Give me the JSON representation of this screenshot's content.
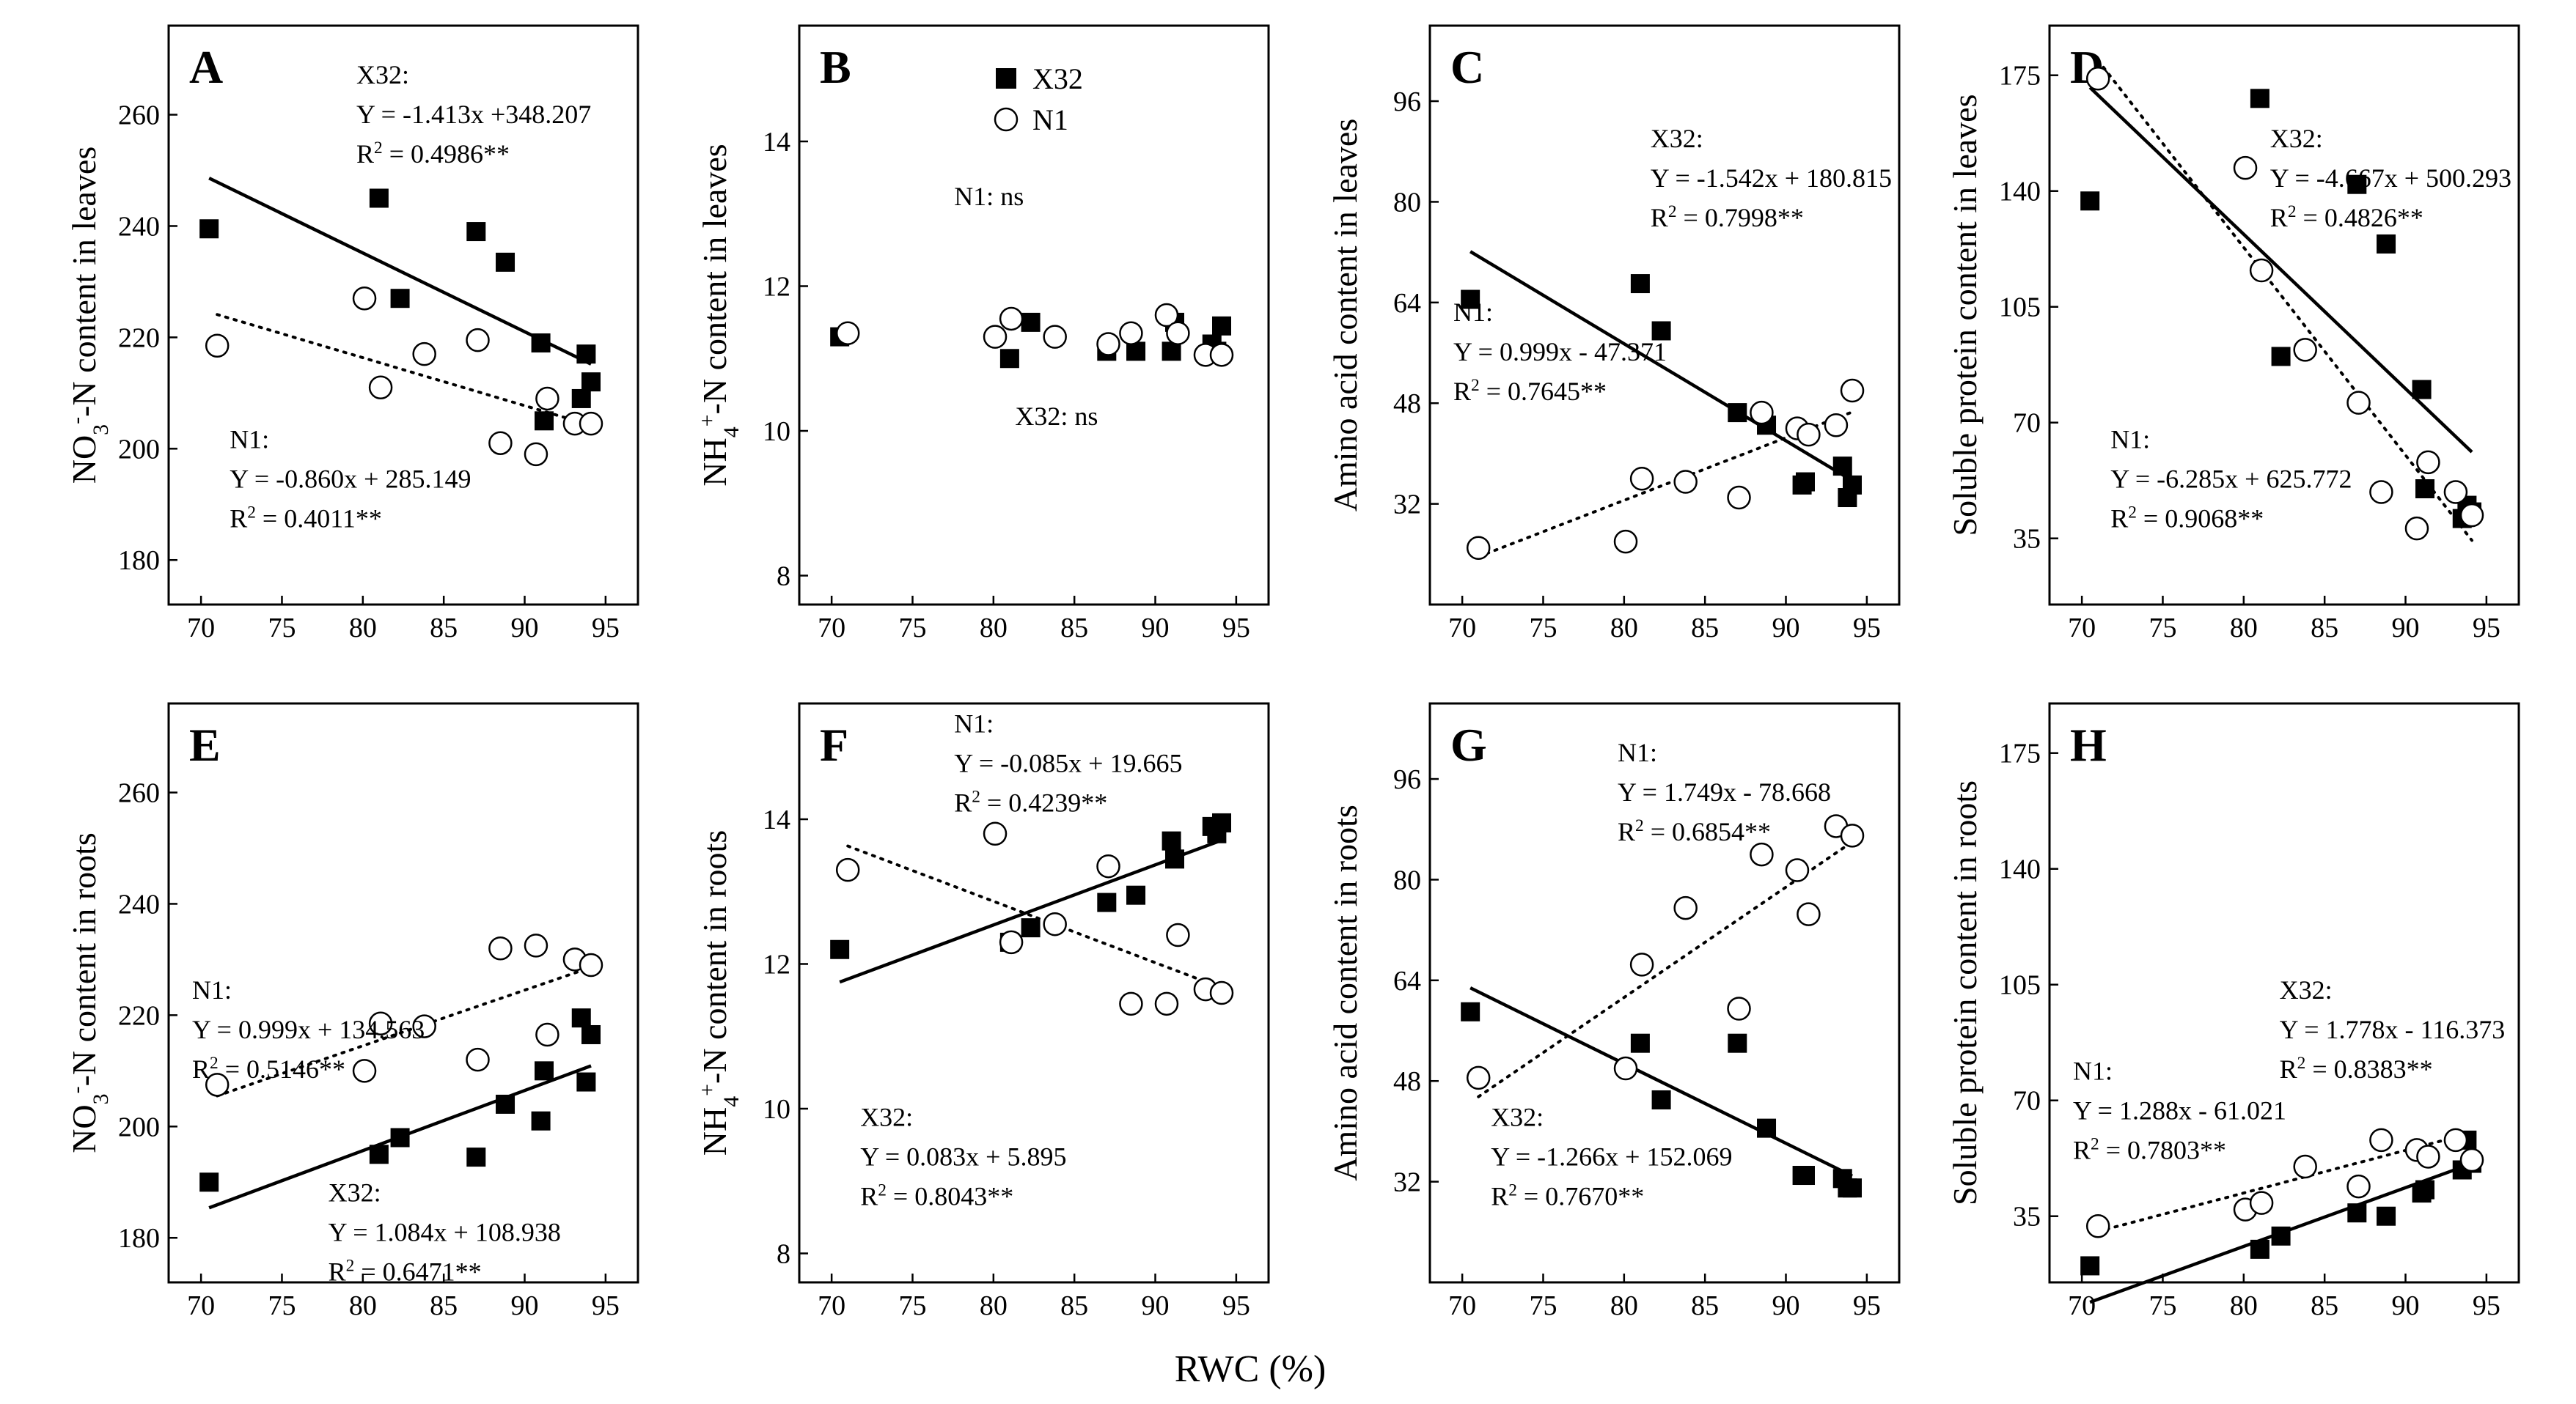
{
  "figure": {
    "xlabel": "RWC (%)"
  },
  "legend": {
    "series_x32": "X32",
    "series_n1": "N1"
  },
  "chart_data": [
    {
      "type": "scatter",
      "panel": "A",
      "ylabel": [
        "NO",
        "3",
        "-",
        "-N content in leaves"
      ],
      "xlim": [
        68,
        97
      ],
      "ylim": [
        172,
        276
      ],
      "xticks": [
        70,
        75,
        80,
        85,
        90,
        95
      ],
      "yticks": [
        180,
        200,
        220,
        240,
        260
      ],
      "series": [
        {
          "name": "X32",
          "marker": "filled-square",
          "x": [
            70.5,
            81,
            82.3,
            87,
            88.8,
            91,
            91.2,
            93.5,
            93.8,
            94.1
          ],
          "y": [
            239.5,
            245,
            227,
            239,
            233.5,
            219,
            205,
            209,
            217,
            212
          ]
        },
        {
          "name": "N1",
          "marker": "open-circle",
          "x": [
            71,
            80.1,
            81.1,
            83.8,
            87.1,
            88.5,
            90.7,
            91.4,
            93.1,
            94.1
          ],
          "y": [
            218.5,
            227,
            211,
            217,
            219.5,
            201,
            199,
            209,
            204.5,
            204.5
          ]
        }
      ],
      "fits": [
        {
          "series": "X32",
          "style": "solid",
          "x": [
            70.5,
            94.1
          ],
          "y": [
            248.6,
            215.2
          ]
        },
        {
          "series": "N1",
          "style": "dotted",
          "x": [
            71,
            94.1
          ],
          "y": [
            224.1,
            204.2
          ]
        }
      ],
      "annotations": [
        {
          "pos": "upper-middle",
          "lines": [
            [
              "X32:"
            ],
            [
              "Y = -1.413x +348.207"
            ],
            [
              "R",
              "2",
              " = 0.4986**"
            ]
          ]
        },
        {
          "pos": "lower-left",
          "lines": [
            [
              "N1:"
            ],
            [
              "Y = -0.860x + 285.149"
            ],
            [
              "R",
              "2",
              " = 0.4011**"
            ]
          ]
        }
      ]
    },
    {
      "type": "scatter",
      "panel": "B",
      "ylabel": [
        "NH",
        "4",
        "+",
        "-N content in leaves"
      ],
      "xlim": [
        68,
        97
      ],
      "ylim": [
        7.6,
        15.6
      ],
      "xticks": [
        70,
        75,
        80,
        85,
        90,
        95
      ],
      "yticks": [
        8,
        10,
        12,
        14
      ],
      "series": [
        {
          "name": "X32",
          "marker": "filled-square",
          "x": [
            70.5,
            81,
            82.3,
            87,
            88.8,
            91,
            91.2,
            93.5,
            93.8,
            94.1
          ],
          "y": [
            11.3,
            11.0,
            11.5,
            11.1,
            11.1,
            11.1,
            11.5,
            11.2,
            11.1,
            11.45
          ]
        },
        {
          "name": "N1",
          "marker": "open-circle",
          "x": [
            71,
            80.1,
            81.1,
            83.8,
            87.1,
            88.5,
            90.7,
            91.4,
            93.1,
            94.1
          ],
          "y": [
            11.35,
            11.3,
            11.55,
            11.3,
            11.2,
            11.35,
            11.6,
            11.35,
            11.05,
            11.05
          ]
        }
      ],
      "fits": [],
      "annotations": [
        {
          "pos": "mid-left-high",
          "lines": [
            [
              "N1:  ns"
            ]
          ]
        },
        {
          "pos": "mid-center-low",
          "lines": [
            [
              "X32:  ns"
            ]
          ]
        }
      ]
    },
    {
      "type": "scatter",
      "panel": "C",
      "ylabel": [
        "Amino acid content in leaves"
      ],
      "xlim": [
        68,
        97
      ],
      "ylim": [
        16,
        108
      ],
      "xticks": [
        70,
        75,
        80,
        85,
        90,
        95
      ],
      "yticks": [
        32,
        48,
        64,
        80,
        96
      ],
      "series": [
        {
          "name": "X32",
          "marker": "filled-square",
          "x": [
            70.5,
            81,
            82.3,
            87,
            88.8,
            91,
            91.2,
            93.5,
            93.8,
            94.1
          ],
          "y": [
            64.5,
            67,
            59.5,
            46.5,
            44.5,
            35,
            35.5,
            38,
            33,
            35
          ]
        },
        {
          "name": "N1",
          "marker": "open-circle",
          "x": [
            71,
            80.1,
            81.1,
            83.8,
            87.1,
            88.5,
            90.7,
            91.4,
            93.1,
            94.1
          ],
          "y": [
            25,
            26,
            36,
            35.5,
            33,
            46.5,
            44,
            43,
            44.5,
            50
          ]
        }
      ],
      "fits": [
        {
          "series": "X32",
          "style": "solid",
          "x": [
            70.5,
            94.1
          ],
          "y": [
            72.1,
            35.7
          ]
        },
        {
          "series": "N1",
          "style": "dotted",
          "x": [
            71,
            94.1
          ],
          "y": [
            23.6,
            46.6
          ]
        }
      ],
      "annotations": [
        {
          "pos": "upper-right",
          "lines": [
            [
              "X32:"
            ],
            [
              "Y = -1.542x + 180.815"
            ],
            [
              "R",
              "2",
              " = 0.7998**"
            ]
          ]
        },
        {
          "pos": "mid-left",
          "lines": [
            [
              "N1:"
            ],
            [
              "Y = 0.999x - 47.371"
            ],
            [
              "R",
              "2",
              " = 0.7645**"
            ]
          ]
        }
      ]
    },
    {
      "type": "scatter",
      "panel": "D",
      "ylabel": [
        "Soluble protein content in leaves"
      ],
      "xlim": [
        68,
        97
      ],
      "ylim": [
        15,
        190
      ],
      "xticks": [
        70,
        75,
        80,
        85,
        90,
        95
      ],
      "yticks": [
        35,
        70,
        105,
        140,
        175
      ],
      "series": [
        {
          "name": "X32",
          "marker": "filled-square",
          "x": [
            70.5,
            81,
            82.3,
            87,
            88.8,
            91,
            91.2,
            93.5,
            93.8,
            94.1
          ],
          "y": [
            137,
            168,
            90,
            142,
            124,
            80,
            50,
            41,
            45,
            43
          ]
        },
        {
          "name": "N1",
          "marker": "open-circle",
          "x": [
            71,
            80.1,
            81.1,
            83.8,
            87.1,
            88.5,
            90.7,
            91.4,
            93.1,
            94.1
          ],
          "y": [
            174,
            147,
            116,
            92,
            76,
            49,
            38,
            58,
            49,
            42
          ]
        }
      ],
      "fits": [
        {
          "series": "X32",
          "style": "solid",
          "x": [
            70.5,
            94.1
          ],
          "y": [
            171.3,
            61.1
          ]
        },
        {
          "series": "N1",
          "style": "dotted",
          "x": [
            71,
            94.1
          ],
          "y": [
            179.5,
            34.4
          ]
        }
      ],
      "annotations": [
        {
          "pos": "upper-right",
          "lines": [
            [
              "X32:"
            ],
            [
              "Y = -4.667x + 500.293"
            ],
            [
              "R",
              "2",
              " = 0.4826**"
            ]
          ]
        },
        {
          "pos": "lower-left",
          "lines": [
            [
              "N1:"
            ],
            [
              "Y = -6.285x + 625.772"
            ],
            [
              "R",
              "2",
              " = 0.9068**"
            ]
          ]
        }
      ]
    },
    {
      "type": "scatter",
      "panel": "E",
      "ylabel": [
        "NO",
        "3",
        "-",
        "-N content in roots"
      ],
      "xlim": [
        68,
        97
      ],
      "ylim": [
        172,
        276
      ],
      "xticks": [
        70,
        75,
        80,
        85,
        90,
        95
      ],
      "yticks": [
        180,
        200,
        220,
        240,
        260
      ],
      "series": [
        {
          "name": "X32",
          "marker": "filled-square",
          "x": [
            70.5,
            81,
            82.3,
            87,
            88.8,
            91,
            91.2,
            93.5,
            93.8,
            94.1
          ],
          "y": [
            190,
            195,
            198,
            194.5,
            204,
            201,
            210,
            219.5,
            208,
            216.5
          ]
        },
        {
          "name": "N1",
          "marker": "open-circle",
          "x": [
            71,
            80.1,
            81.1,
            83.8,
            87.1,
            88.5,
            90.7,
            91.4,
            93.1,
            94.1
          ],
          "y": [
            207.5,
            210,
            218.5,
            218,
            212,
            232,
            232.5,
            216.5,
            230,
            229
          ]
        }
      ],
      "fits": [
        {
          "series": "X32",
          "style": "solid",
          "x": [
            70.5,
            94.1
          ],
          "y": [
            185.4,
            210.9
          ]
        },
        {
          "series": "N1",
          "style": "dotted",
          "x": [
            71,
            94.1
          ],
          "y": [
            205.5,
            228.6
          ]
        }
      ],
      "annotations": [
        {
          "pos": "mid-left",
          "lines": [
            [
              "N1:"
            ],
            [
              "Y = 0.999x + 134.563"
            ],
            [
              "R",
              "2",
              " = 0.5146**"
            ]
          ]
        },
        {
          "pos": "lower-middle",
          "lines": [
            [
              "X32:"
            ],
            [
              "Y = 1.084x + 108.938"
            ],
            [
              "R",
              "2",
              " = 0.6471**"
            ]
          ]
        }
      ]
    },
    {
      "type": "scatter",
      "panel": "F",
      "ylabel": [
        "NH",
        "4",
        "+",
        "-N content  in roots"
      ],
      "xlim": [
        68,
        97
      ],
      "ylim": [
        7.6,
        15.6
      ],
      "xticks": [
        70,
        75,
        80,
        85,
        90,
        95
      ],
      "yticks": [
        8,
        10,
        12,
        14
      ],
      "series": [
        {
          "name": "X32",
          "marker": "filled-square",
          "x": [
            70.5,
            81,
            82.3,
            87,
            88.8,
            91,
            91.2,
            93.5,
            93.8,
            94.1
          ],
          "y": [
            12.2,
            12.3,
            12.5,
            12.85,
            12.95,
            13.7,
            13.45,
            13.9,
            13.8,
            13.95
          ]
        },
        {
          "name": "N1",
          "marker": "open-circle",
          "x": [
            71,
            80.1,
            81.1,
            83.8,
            87.1,
            88.5,
            90.7,
            91.4,
            93.1,
            94.1
          ],
          "y": [
            13.3,
            13.8,
            12.3,
            12.55,
            13.35,
            11.45,
            11.45,
            12.4,
            11.65,
            11.6
          ]
        }
      ],
      "fits": [
        {
          "series": "X32",
          "style": "solid",
          "x": [
            70.5,
            94.1
          ],
          "y": [
            11.75,
            13.71
          ]
        },
        {
          "series": "N1",
          "style": "dotted",
          "x": [
            71,
            94.1
          ],
          "y": [
            13.63,
            11.67
          ]
        }
      ],
      "annotations": [
        {
          "pos": "upper-left",
          "lines": [
            [
              "N1:"
            ],
            [
              "Y = -0.085x + 19.665"
            ],
            [
              "R",
              "2",
              " = 0.4239**"
            ]
          ]
        },
        {
          "pos": "lower-left",
          "lines": [
            [
              "X32:"
            ],
            [
              "Y = 0.083x + 5.895"
            ],
            [
              "R",
              "2",
              " = 0.8043**"
            ]
          ]
        }
      ]
    },
    {
      "type": "scatter",
      "panel": "G",
      "ylabel": [
        "Amino acid content  in roots"
      ],
      "xlim": [
        68,
        97
      ],
      "ylim": [
        16,
        108
      ],
      "xticks": [
        70,
        75,
        80,
        85,
        90,
        95
      ],
      "yticks": [
        32,
        48,
        64,
        80,
        96
      ],
      "series": [
        {
          "name": "X32",
          "marker": "filled-square",
          "x": [
            70.5,
            81,
            82.3,
            87,
            88.8,
            91,
            91.2,
            93.5,
            93.8,
            94.1
          ],
          "y": [
            59,
            54,
            45,
            54,
            40.5,
            33,
            33,
            32.5,
            31,
            31
          ]
        },
        {
          "name": "N1",
          "marker": "open-circle",
          "x": [
            71,
            80.1,
            81.1,
            83.8,
            87.1,
            88.5,
            90.7,
            91.4,
            93.1,
            94.1
          ],
          "y": [
            48.5,
            50,
            66.5,
            75.5,
            59.5,
            84,
            81.5,
            74.5,
            88.5,
            87
          ]
        }
      ],
      "fits": [
        {
          "series": "X32",
          "style": "solid",
          "x": [
            70.5,
            94.1
          ],
          "y": [
            62.8,
            32.9
          ]
        },
        {
          "series": "N1",
          "style": "dotted",
          "x": [
            71,
            94.1
          ],
          "y": [
            45.5,
            86.0
          ]
        }
      ],
      "annotations": [
        {
          "pos": "upper-middle",
          "lines": [
            [
              "N1:"
            ],
            [
              "Y = 1.749x - 78.668"
            ],
            [
              "R",
              "2",
              " = 0.6854**"
            ]
          ]
        },
        {
          "pos": "lower-left",
          "lines": [
            [
              "X32:"
            ],
            [
              "Y = -1.266x + 152.069"
            ],
            [
              "R",
              "2",
              " = 0.7670**"
            ]
          ]
        }
      ]
    },
    {
      "type": "scatter",
      "panel": "H",
      "ylabel": [
        "Soluble protein content  in roots"
      ],
      "xlim": [
        68,
        97
      ],
      "ylim": [
        15,
        190
      ],
      "xticks": [
        70,
        75,
        80,
        85,
        90,
        95
      ],
      "yticks": [
        35,
        70,
        105,
        140,
        175
      ],
      "series": [
        {
          "name": "X32",
          "marker": "filled-square",
          "x": [
            70.5,
            81,
            82.3,
            87,
            88.8,
            91,
            91.2,
            93.5,
            93.8,
            94.1
          ],
          "y": [
            20,
            25,
            29,
            36,
            35,
            42,
            43,
            49,
            58,
            51
          ]
        },
        {
          "name": "N1",
          "marker": "open-circle",
          "x": [
            71,
            80.1,
            81.1,
            83.8,
            87.1,
            88.5,
            90.7,
            91.4,
            93.1,
            94.1
          ],
          "y": [
            32,
            37,
            39,
            50,
            44,
            58,
            55,
            53,
            58,
            52
          ]
        }
      ],
      "fits": [
        {
          "series": "X32",
          "style": "solid",
          "x": [
            70.5,
            94.1
          ],
          "y": [
            9.0,
            50.9
          ]
        },
        {
          "series": "N1",
          "style": "dotted",
          "x": [
            71,
            94.1
          ],
          "y": [
            30.4,
            60.2
          ]
        }
      ],
      "annotations": [
        {
          "pos": "mid-right",
          "lines": [
            [
              "X32:"
            ],
            [
              "Y = 1.778x - 116.373"
            ],
            [
              "R",
              "2",
              " = 0.8383**"
            ]
          ]
        },
        {
          "pos": "lower-left-mid",
          "lines": [
            [
              "N1:"
            ],
            [
              "Y = 1.288x - 61.021"
            ],
            [
              "R",
              "2",
              " = 0.7803**"
            ]
          ]
        }
      ]
    }
  ]
}
